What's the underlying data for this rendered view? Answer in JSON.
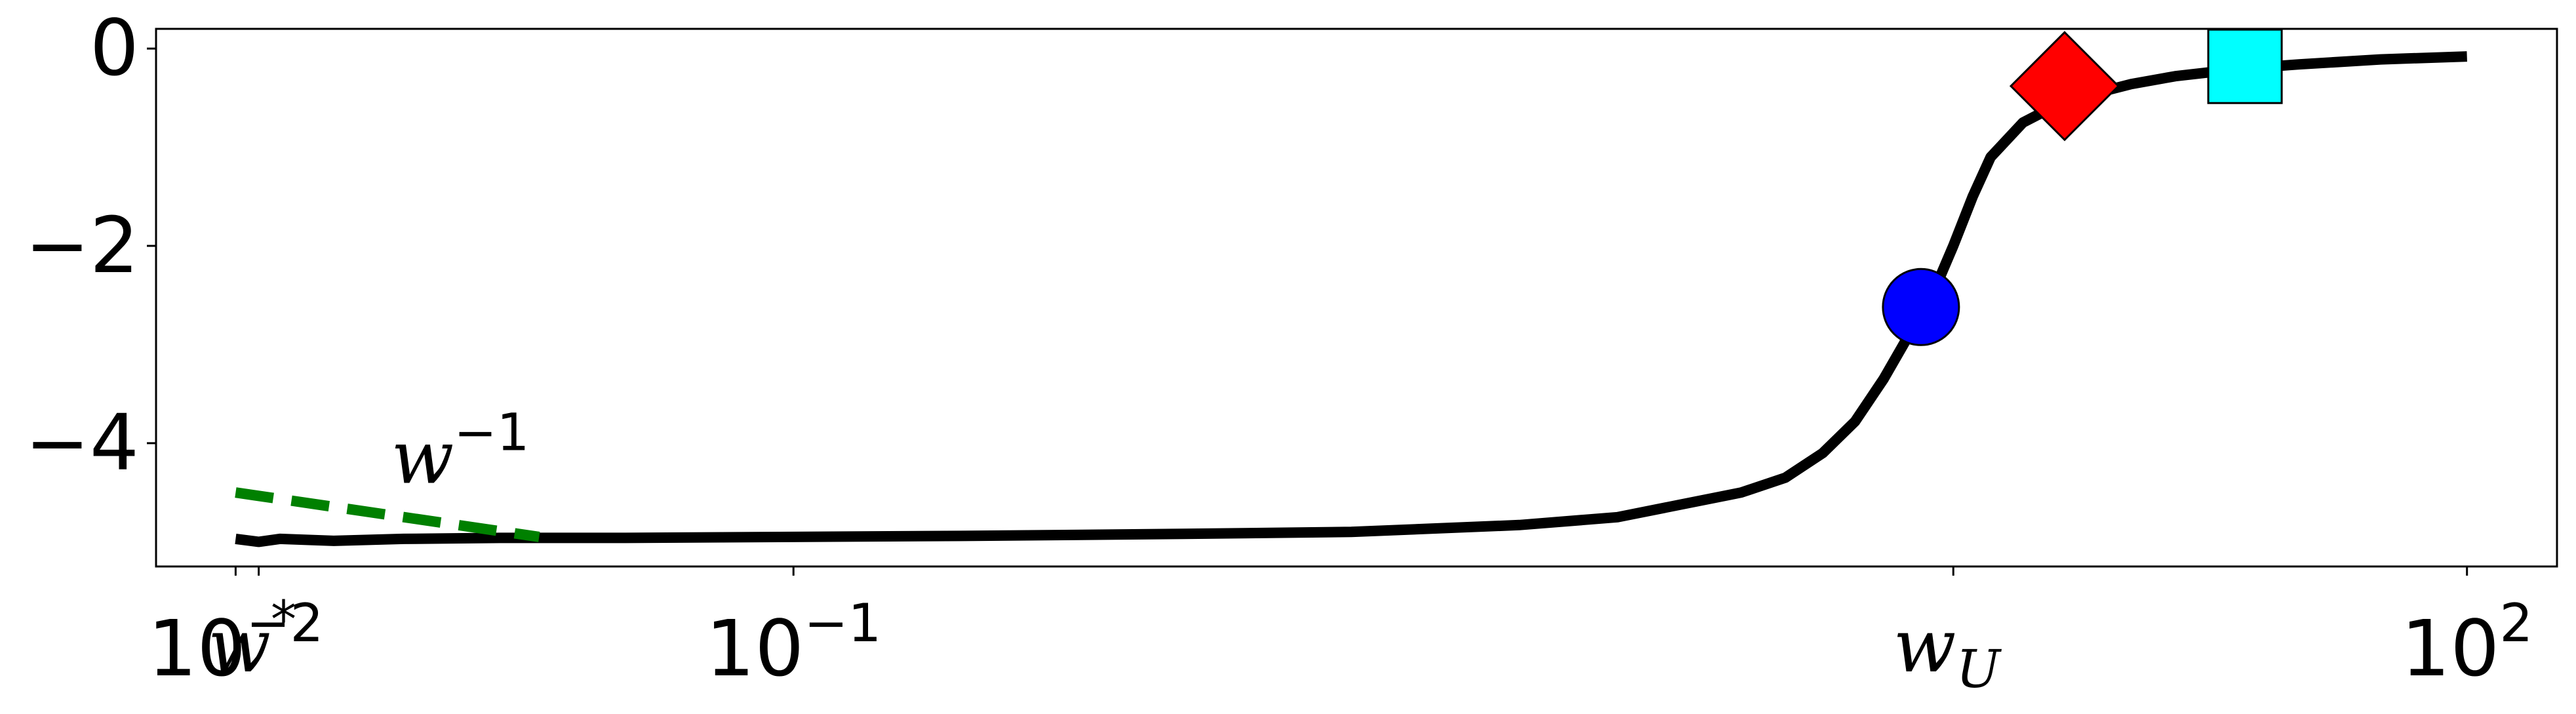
{
  "chart_data": {
    "type": "line",
    "title": "",
    "xlabel": "",
    "ylabel": "",
    "x_scale": "log",
    "xlim": [
      0.0072,
      145
    ],
    "ylim": [
      -5.25,
      0.2
    ],
    "grid": false,
    "colors": {
      "curve": "#000000",
      "asymptote": "#008000",
      "circle": "#0000ff",
      "diamond": "#ff0000",
      "square": "#00ffff"
    },
    "x_ticks": [
      {
        "value": 0.01,
        "base": "10",
        "exp": "−2"
      },
      {
        "value": 0.1,
        "base": "10",
        "exp": "−1"
      },
      {
        "value": 100,
        "base": "10",
        "exp": "2"
      }
    ],
    "y_ticks": [
      {
        "value": 0,
        "label": "0"
      },
      {
        "value": -2,
        "label": "−2"
      },
      {
        "value": -4,
        "label": "−4"
      }
    ],
    "special_ticks": [
      {
        "value": 0.011,
        "base": "w",
        "sup": "*"
      },
      {
        "value": 12,
        "base": "w",
        "sub": "U"
      }
    ],
    "series": [
      {
        "x": [
          0.01,
          0.011,
          0.012,
          0.015,
          0.02,
          0.03,
          0.05,
          0.1,
          0.2,
          0.5,
          1,
          2,
          3,
          5,
          6,
          7,
          8,
          9,
          10,
          11,
          12,
          13,
          14,
          16,
          18,
          20,
          25,
          30,
          40,
          50,
          70,
          100
        ],
        "values": [
          -4.97,
          -5.0,
          -4.97,
          -4.99,
          -4.97,
          -4.96,
          -4.96,
          -4.95,
          -4.94,
          -4.92,
          -4.9,
          -4.83,
          -4.75,
          -4.5,
          -4.35,
          -4.1,
          -3.78,
          -3.35,
          -2.9,
          -2.5,
          -2.0,
          -1.5,
          -1.1,
          -0.75,
          -0.6,
          -0.5,
          -0.36,
          -0.28,
          -0.2,
          -0.16,
          -0.11,
          -0.08
        ]
      },
      {
        "x": [
          0.01,
          0.035
        ],
        "values": [
          -4.5,
          -4.95
        ]
      }
    ],
    "annotations": [
      {
        "base": "w",
        "sup": "−1",
        "x": 0.019,
        "y": -4.15
      }
    ],
    "markers": [
      {
        "shape": "circle",
        "x": 10.5,
        "y": -2.62
      },
      {
        "shape": "diamond",
        "x": 19,
        "y": -0.38
      },
      {
        "shape": "square",
        "x": 40,
        "y": -0.18
      }
    ]
  }
}
